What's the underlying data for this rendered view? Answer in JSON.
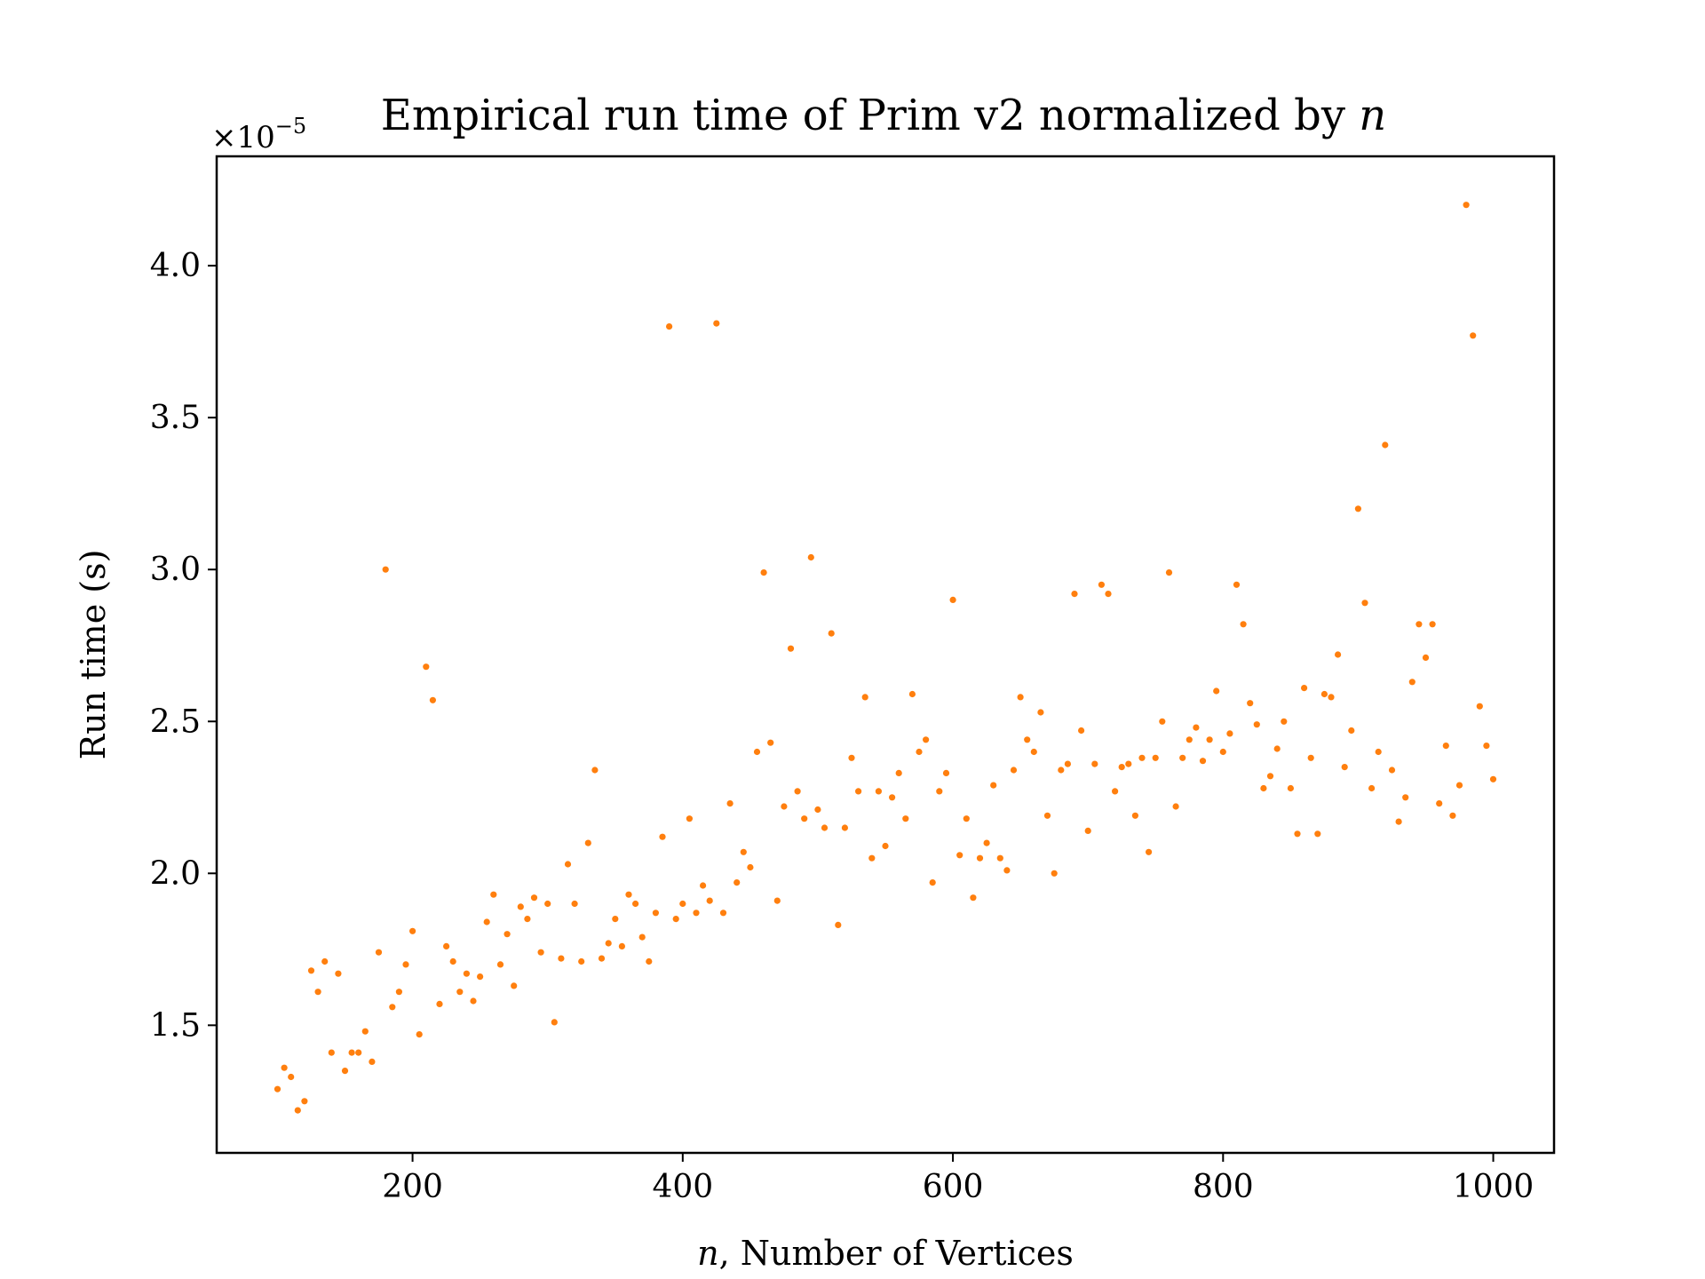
{
  "chart_data": {
    "type": "scatter",
    "title": "Empirical run time of Prim v2 normalized by n",
    "title_main": "Empirical run time of Prim v2 normalized by ",
    "title_var": "n",
    "xlabel_var": "n",
    "xlabel_rest": ", Number of Vertices",
    "ylabel": "Run time (s)",
    "y_offset_base": "×10",
    "y_offset_exp": "−5",
    "xlim": [
      55,
      1045
    ],
    "ylim": [
      1.08,
      4.36
    ],
    "xticks": [
      200,
      400,
      600,
      800,
      1000
    ],
    "xtick_labels": [
      "200",
      "400",
      "600",
      "800",
      "1000"
    ],
    "yticks": [
      1.5,
      2.0,
      2.5,
      3.0,
      3.5,
      4.0
    ],
    "ytick_labels": [
      "1.5",
      "2.0",
      "2.5",
      "3.0",
      "3.5",
      "4.0"
    ],
    "point_color": "#ff7f0e",
    "grid": false,
    "legend": "none",
    "series": [
      {
        "x": [
          100,
          105,
          110,
          115,
          120,
          125,
          130,
          135,
          140,
          145,
          150,
          155,
          160,
          165,
          170,
          175,
          180,
          185,
          190,
          195,
          200,
          205,
          210,
          215,
          220,
          225,
          230,
          235,
          240,
          245,
          250,
          255,
          260,
          265,
          270,
          275,
          280,
          285,
          290,
          295,
          300,
          305,
          310,
          315,
          320,
          325,
          330,
          335,
          340,
          345,
          350,
          355,
          360,
          365,
          370,
          375,
          380,
          385,
          390,
          395,
          400,
          405,
          410,
          415,
          420,
          425,
          430,
          435,
          440,
          445,
          450,
          455,
          460,
          465,
          470,
          475,
          480,
          485,
          490,
          495,
          500,
          505,
          510,
          515,
          520,
          525,
          530,
          535,
          540,
          545,
          550,
          555,
          560,
          565,
          570,
          575,
          580,
          585,
          590,
          595,
          600,
          605,
          610,
          615,
          620,
          625,
          630,
          635,
          640,
          645,
          650,
          655,
          660,
          665,
          670,
          675,
          680,
          685,
          690,
          695,
          700,
          705,
          710,
          715,
          720,
          725,
          730,
          735,
          740,
          745,
          750,
          755,
          760,
          765,
          770,
          775,
          780,
          785,
          790,
          795,
          800,
          805,
          810,
          815,
          820,
          825,
          830,
          835,
          840,
          845,
          850,
          855,
          860,
          865,
          870,
          875,
          880,
          885,
          890,
          895,
          900,
          905,
          910,
          915,
          920,
          925,
          930,
          935,
          940,
          945,
          950,
          955,
          960,
          965,
          970,
          975,
          980,
          985,
          990,
          995,
          1000
        ],
        "y": [
          1.29,
          1.36,
          1.33,
          1.22,
          1.25,
          1.68,
          1.61,
          1.71,
          1.41,
          1.67,
          1.35,
          1.41,
          1.41,
          1.48,
          1.38,
          1.74,
          3.0,
          1.56,
          1.61,
          1.7,
          1.81,
          1.47,
          2.68,
          2.57,
          1.57,
          1.76,
          1.71,
          1.61,
          1.67,
          1.58,
          1.66,
          1.84,
          1.93,
          1.7,
          1.8,
          1.63,
          1.89,
          1.85,
          1.92,
          1.74,
          1.9,
          1.51,
          1.72,
          2.03,
          1.9,
          1.71,
          2.1,
          2.34,
          1.72,
          1.77,
          1.85,
          1.76,
          1.93,
          1.9,
          1.79,
          1.71,
          1.87,
          2.12,
          3.8,
          1.85,
          1.9,
          2.18,
          1.87,
          1.96,
          1.91,
          3.81,
          1.87,
          2.23,
          1.97,
          2.07,
          2.02,
          2.4,
          2.99,
          2.43,
          1.91,
          2.22,
          2.74,
          2.27,
          2.18,
          3.04,
          2.21,
          2.15,
          2.79,
          1.83,
          2.15,
          2.38,
          2.27,
          2.58,
          2.05,
          2.27,
          2.09,
          2.25,
          2.33,
          2.18,
          2.59,
          2.4,
          2.44,
          1.97,
          2.27,
          2.33,
          2.9,
          2.06,
          2.18,
          1.92,
          2.05,
          2.1,
          2.29,
          2.05,
          2.01,
          2.34,
          2.58,
          2.44,
          2.4,
          2.53,
          2.19,
          2.0,
          2.34,
          2.36,
          2.92,
          2.47,
          2.14,
          2.36,
          2.95,
          2.92,
          2.27,
          2.35,
          2.36,
          2.19,
          2.38,
          2.07,
          2.38,
          2.5,
          2.99,
          2.22,
          2.38,
          2.44,
          2.48,
          2.37,
          2.44,
          2.6,
          2.4,
          2.46,
          2.95,
          2.82,
          2.56,
          2.49,
          2.28,
          2.32,
          2.41,
          2.5,
          2.28,
          2.13,
          2.61,
          2.38,
          2.13,
          2.59,
          2.58,
          2.72,
          2.35,
          2.47,
          3.2,
          2.89,
          2.28,
          2.4,
          3.41,
          2.34,
          2.17,
          2.25,
          2.63,
          2.82,
          2.71,
          2.82,
          2.23,
          2.42,
          2.19,
          2.29,
          4.2,
          3.77,
          2.55,
          2.42,
          2.31
        ]
      }
    ]
  }
}
